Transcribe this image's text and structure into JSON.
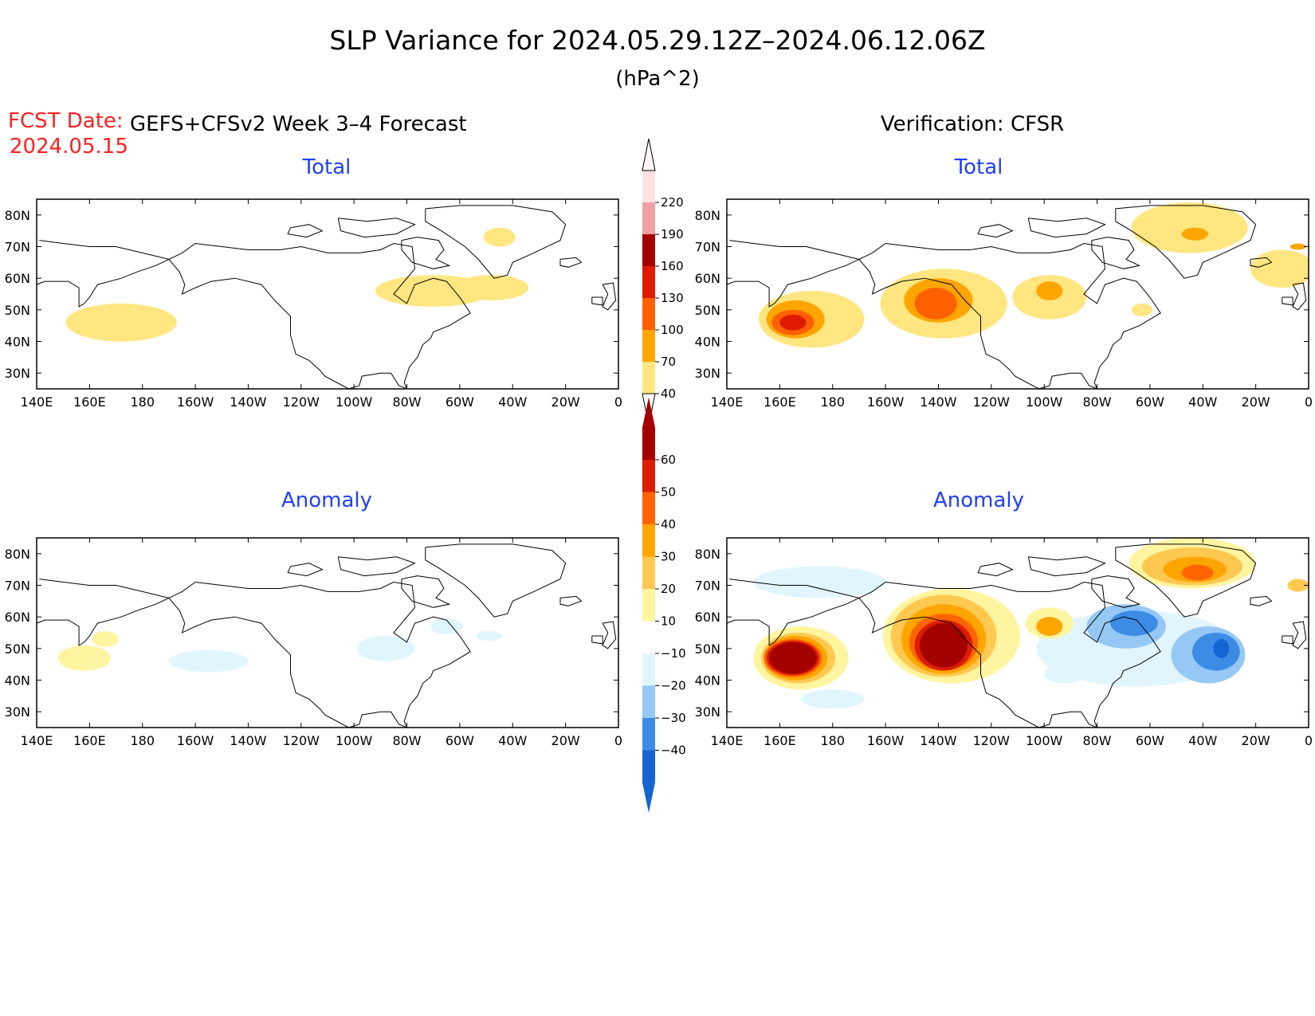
{
  "header": {
    "title": "SLP Variance for 2024.05.29.12Z–2024.06.12.06Z",
    "units": "(hPa^2)",
    "fcst_label": "FCST Date:",
    "fcst_date": "2024.05.15",
    "left_title": "GEFS+CFSv2 Week 3–4 Forecast",
    "right_title": "Verification: CFSR"
  },
  "panels": {
    "fcst_total_title": "Total",
    "fcst_anom_title": "Anomaly",
    "verif_total_title": "Total",
    "verif_anom_title": "Anomaly"
  },
  "axes": {
    "lon_labels": [
      "140E",
      "160E",
      "180",
      "160W",
      "140W",
      "120W",
      "100W",
      "80W",
      "60W",
      "40W",
      "20W",
      "0"
    ],
    "lat_labels": [
      "80N",
      "70N",
      "60N",
      "50N",
      "40N",
      "30N"
    ],
    "lon_range": [
      140,
      360
    ],
    "lat_range": [
      25,
      85
    ]
  },
  "colorbars": {
    "total": {
      "levels": [
        "40",
        "70",
        "100",
        "130",
        "160",
        "190",
        "220"
      ],
      "colors": [
        "#ffe680",
        "#ffa500",
        "#ff6000",
        "#e01a00",
        "#a50000",
        "#f0a0a0",
        "#fde0e0"
      ]
    },
    "anomaly": {
      "levels": [
        "−40",
        "−30",
        "−20",
        "−10",
        "10",
        "20",
        "30",
        "40",
        "50",
        "60"
      ],
      "colors": [
        "#1464d2",
        "#3c8ce6",
        "#96c8f5",
        "#e1f5ff",
        "#ffffff",
        "#fff5a0",
        "#ffc850",
        "#ffa500",
        "#ff6400",
        "#dc1e00",
        "#a50000"
      ]
    }
  },
  "chart_data": [
    {
      "type": "heatmap",
      "title": "Total",
      "units": "hPa^2",
      "source": "GEFS+CFSv2 Week 3–4 Forecast",
      "features": [
        {
          "level": 40,
          "lon": 172,
          "lat": 46,
          "rlon": 21,
          "rlat": 6
        },
        {
          "level": 40,
          "lon": 290,
          "lat": 56,
          "rlon": 22,
          "rlat": 5
        },
        {
          "level": 40,
          "lon": 312,
          "lat": 57,
          "rlon": 14,
          "rlat": 4
        },
        {
          "level": 40,
          "lon": 315,
          "lat": 73,
          "rlon": 6,
          "rlat": 3
        }
      ]
    },
    {
      "type": "heatmap",
      "title": "Total",
      "units": "hPa^2",
      "source": "Verification: CFSR",
      "features": [
        {
          "level": 40,
          "lon": 172,
          "lat": 47,
          "rlon": 20,
          "rlat": 9
        },
        {
          "level": 40,
          "lon": 222,
          "lat": 52,
          "rlon": 24,
          "rlat": 11
        },
        {
          "level": 40,
          "lon": 262,
          "lat": 54,
          "rlon": 14,
          "rlat": 7
        },
        {
          "level": 40,
          "lon": 315,
          "lat": 76,
          "rlon": 22,
          "rlat": 8
        },
        {
          "level": 40,
          "lon": 350,
          "lat": 63,
          "rlon": 12,
          "rlat": 6
        },
        {
          "level": 40,
          "lon": 297,
          "lat": 50,
          "rlon": 4,
          "rlat": 2
        },
        {
          "level": 70,
          "lon": 166,
          "lat": 47,
          "rlon": 11,
          "rlat": 6
        },
        {
          "level": 70,
          "lon": 220,
          "lat": 53,
          "rlon": 13,
          "rlat": 7
        },
        {
          "level": 70,
          "lon": 262,
          "lat": 56,
          "rlon": 5,
          "rlat": 3
        },
        {
          "level": 70,
          "lon": 317,
          "lat": 74,
          "rlon": 5,
          "rlat": 2
        },
        {
          "level": 70,
          "lon": 356,
          "lat": 70,
          "rlon": 3,
          "rlat": 1
        },
        {
          "level": 100,
          "lon": 165,
          "lat": 46,
          "rlon": 8,
          "rlat": 4
        },
        {
          "level": 100,
          "lon": 219,
          "lat": 52,
          "rlon": 8,
          "rlat": 5
        },
        {
          "level": 130,
          "lon": 165,
          "lat": 46,
          "rlon": 5,
          "rlat": 2.5
        }
      ]
    },
    {
      "type": "heatmap",
      "title": "Anomaly",
      "units": "hPa^2",
      "source": "GEFS+CFSv2 Week 3–4 Forecast",
      "features": [
        {
          "level": 10,
          "lon": 158,
          "lat": 47,
          "rlon": 10,
          "rlat": 4
        },
        {
          "level": 10,
          "lon": 166,
          "lat": 53,
          "rlon": 5,
          "rlat": 2.5
        },
        {
          "level": -10,
          "lon": 205,
          "lat": 46,
          "rlon": 15,
          "rlat": 3.5
        },
        {
          "level": -10,
          "lon": 272,
          "lat": 50,
          "rlon": 11,
          "rlat": 4
        },
        {
          "level": -10,
          "lon": 295,
          "lat": 57,
          "rlon": 6,
          "rlat": 2.5
        },
        {
          "level": -10,
          "lon": 311,
          "lat": 54,
          "rlon": 5,
          "rlat": 1.5
        }
      ]
    },
    {
      "type": "heatmap",
      "title": "Anomaly",
      "units": "hPa^2",
      "source": "Verification: CFSR",
      "features": [
        {
          "level": -10,
          "lon": 175,
          "lat": 71,
          "rlon": 25,
          "rlat": 5
        },
        {
          "level": -10,
          "lon": 295,
          "lat": 50,
          "rlon": 38,
          "rlat": 12
        },
        {
          "level": -10,
          "lon": 180,
          "lat": 34,
          "rlon": 12,
          "rlat": 3
        },
        {
          "level": -10,
          "lon": 268,
          "lat": 42,
          "rlon": 8,
          "rlat": 3
        },
        {
          "level": -20,
          "lon": 291,
          "lat": 57,
          "rlon": 15,
          "rlat": 7
        },
        {
          "level": -20,
          "lon": 322,
          "lat": 48,
          "rlon": 14,
          "rlat": 9
        },
        {
          "level": -30,
          "lon": 294,
          "lat": 58,
          "rlon": 9,
          "rlat": 4
        },
        {
          "level": -30,
          "lon": 325,
          "lat": 49,
          "rlon": 9,
          "rlat": 6
        },
        {
          "level": -40,
          "lon": 327,
          "lat": 50,
          "rlon": 3,
          "rlat": 3
        },
        {
          "level": 10,
          "lon": 168,
          "lat": 47,
          "rlon": 18,
          "rlat": 10
        },
        {
          "level": 10,
          "lon": 225,
          "lat": 54,
          "rlon": 26,
          "rlat": 15
        },
        {
          "level": 10,
          "lon": 316,
          "lat": 77,
          "rlon": 24,
          "rlat": 8
        },
        {
          "level": 10,
          "lon": 262,
          "lat": 58,
          "rlon": 9,
          "rlat": 5
        },
        {
          "level": 20,
          "lon": 167,
          "lat": 47,
          "rlon": 14,
          "rlat": 8
        },
        {
          "level": 20,
          "lon": 222,
          "lat": 54,
          "rlon": 20,
          "rlat": 13
        },
        {
          "level": 20,
          "lon": 316,
          "lat": 76,
          "rlon": 19,
          "rlat": 6
        },
        {
          "level": 20,
          "lon": 356,
          "lat": 70,
          "rlon": 4,
          "rlat": 2
        },
        {
          "level": 30,
          "lon": 166,
          "lat": 47,
          "rlon": 12,
          "rlat": 7
        },
        {
          "level": 30,
          "lon": 222,
          "lat": 53,
          "rlon": 16,
          "rlat": 11
        },
        {
          "level": 30,
          "lon": 317,
          "lat": 75,
          "rlon": 12,
          "rlat": 4
        },
        {
          "level": 30,
          "lon": 262,
          "lat": 57,
          "rlon": 5,
          "rlat": 3
        },
        {
          "level": 40,
          "lon": 165,
          "lat": 47,
          "rlon": 11,
          "rlat": 6
        },
        {
          "level": 40,
          "lon": 222,
          "lat": 52,
          "rlon": 13,
          "rlat": 9
        },
        {
          "level": 40,
          "lon": 318,
          "lat": 74,
          "rlon": 6,
          "rlat": 2.5
        },
        {
          "level": 50,
          "lon": 165,
          "lat": 47,
          "rlon": 10,
          "rlat": 5.5
        },
        {
          "level": 50,
          "lon": 222,
          "lat": 51,
          "rlon": 11,
          "rlat": 8
        },
        {
          "level": 60,
          "lon": 165,
          "lat": 47,
          "rlon": 9,
          "rlat": 5
        },
        {
          "level": 60,
          "lon": 222,
          "lat": 51,
          "rlon": 9,
          "rlat": 7
        }
      ]
    }
  ]
}
